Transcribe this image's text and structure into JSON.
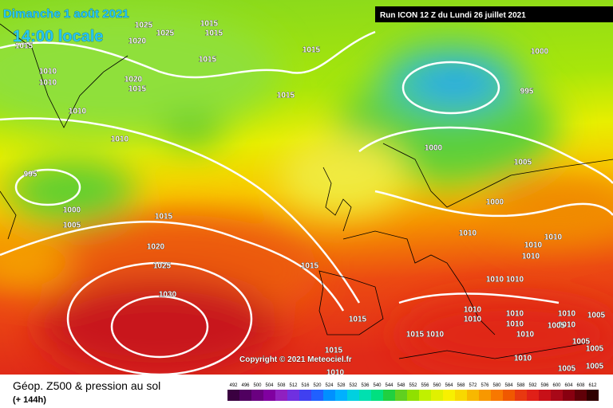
{
  "header": {
    "date": "Dimanche 1 août 2021",
    "time": "14:00 locale",
    "run": "Run ICON 12 Z du Lundi 26 juillet 2021"
  },
  "isobar_labels": [
    "1015",
    "1025",
    "1020",
    "1025",
    "1015",
    "1015",
    "1015",
    "1010",
    "1010",
    "1020",
    "1015",
    "1010",
    "1010",
    "1015",
    "1015",
    "1000",
    "995",
    "1000",
    "1005",
    "1000",
    "995",
    "1000",
    "1005",
    "1015",
    "1010",
    "1020",
    "1025",
    "1015",
    "1010",
    "1010",
    "1010",
    "1010",
    "1010",
    "1030",
    "1010",
    "1010",
    "1010",
    "1010",
    "1015",
    "1010",
    "1010",
    "1005",
    "1005",
    "1015",
    "1010",
    "1005",
    "1005",
    "1015",
    "1010",
    "1010",
    "1005",
    "1005",
    "1010"
  ],
  "copyright": "Copyright © 2021 Meteociel.fr",
  "footer": {
    "title": "Géop. Z500 & pression au sol",
    "lead": "(+ 144h)"
  },
  "scale": [
    "492",
    "496",
    "500",
    "504",
    "508",
    "512",
    "516",
    "520",
    "524",
    "528",
    "532",
    "536",
    "540",
    "544",
    "548",
    "552",
    "556",
    "560",
    "564",
    "568",
    "572",
    "576",
    "580",
    "584",
    "588",
    "592",
    "596",
    "600",
    "604",
    "608",
    "612"
  ]
}
